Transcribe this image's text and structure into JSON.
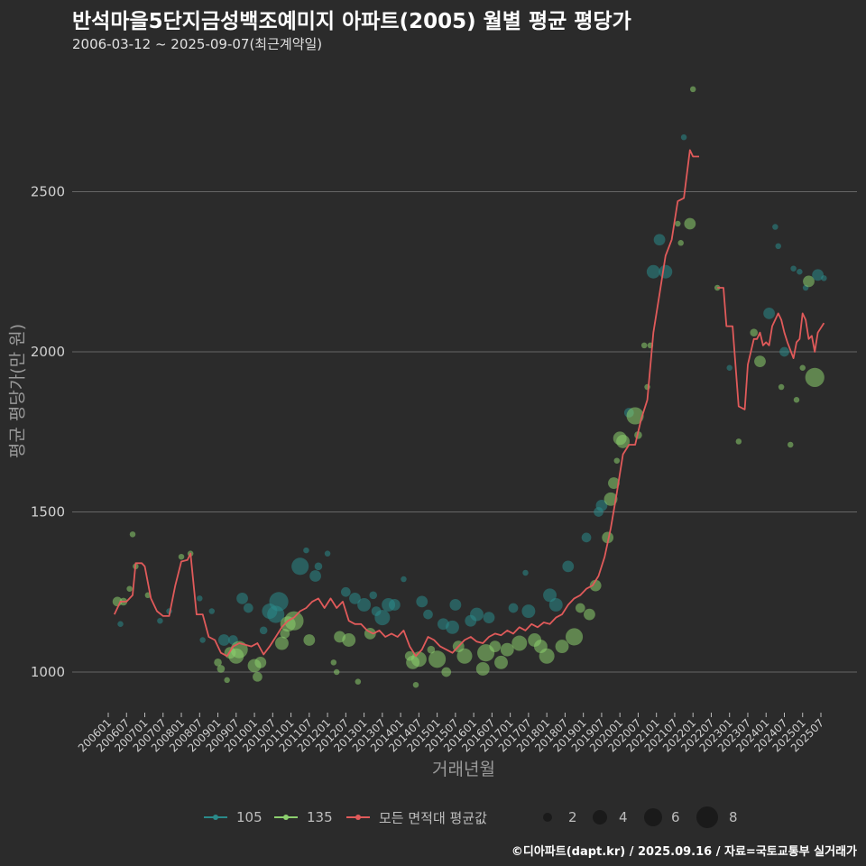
{
  "header": {
    "title": "반석마을5단지금성백조예미지 아파트(2005) 월별 평균 평당가",
    "subtitle": "2006-03-12 ~ 2025-09-07(최근계약일)"
  },
  "caption": "©디아파트(dapt.kr) / 2025.09.16 / 자료=국토교통부 실거래가",
  "colors": {
    "background": "#2b2b2b",
    "grid": "#666666",
    "series_105": "#2a8a8a",
    "series_135": "#8ccf6e",
    "series_avg": "#e05a5a"
  },
  "chart_data": {
    "type": "line",
    "xlabel": "거래년월",
    "ylabel": "평균 평당가(만 원)",
    "ylim": [
      880,
      2900
    ],
    "yticks": [
      1000,
      1500,
      2000,
      2500
    ],
    "grid": true,
    "legend_position": "bottom",
    "xtick_labels": [
      "200601",
      "200607",
      "200701",
      "200707",
      "200801",
      "200807",
      "200901",
      "200907",
      "201001",
      "201007",
      "201101",
      "201107",
      "201201",
      "201207",
      "201301",
      "201307",
      "201401",
      "201407",
      "201501",
      "201507",
      "201601",
      "201607",
      "201701",
      "201707",
      "201801",
      "201807",
      "201901",
      "201907",
      "202001",
      "202007",
      "202101",
      "202107",
      "202201",
      "202207",
      "202301",
      "202307",
      "202401",
      "202407",
      "202501",
      "202507"
    ],
    "legend": {
      "series": [
        {
          "key": "105",
          "label": "105",
          "color": "#2a8a8a"
        },
        {
          "key": "135",
          "label": "135",
          "color": "#8ccf6e"
        },
        {
          "key": "avg",
          "label": "모든 면적대 평균값",
          "color": "#e05a5a"
        }
      ],
      "sizes": [
        2,
        4,
        6,
        8
      ]
    },
    "average_line": [
      [
        "2006-03",
        1180
      ],
      [
        "2006-05",
        1220
      ],
      [
        "2006-07",
        1220
      ],
      [
        "2006-09",
        1240
      ],
      [
        "2006-10",
        1340
      ],
      [
        "2006-12",
        1340
      ],
      [
        "2007-01",
        1330
      ],
      [
        "2007-03",
        1230
      ],
      [
        "2007-05",
        1190
      ],
      [
        "2007-07",
        1175
      ],
      [
        "2007-09",
        1175
      ],
      [
        "2007-11",
        1270
      ],
      [
        "2008-01",
        1345
      ],
      [
        "2008-03",
        1350
      ],
      [
        "2008-04",
        1370
      ],
      [
        "2008-06",
        1180
      ],
      [
        "2008-08",
        1180
      ],
      [
        "2008-10",
        1110
      ],
      [
        "2008-12",
        1100
      ],
      [
        "2009-02",
        1060
      ],
      [
        "2009-04",
        1050
      ],
      [
        "2009-06",
        1080
      ],
      [
        "2009-08",
        1090
      ],
      [
        "2009-10",
        1085
      ],
      [
        "2009-12",
        1080
      ],
      [
        "2010-02",
        1090
      ],
      [
        "2010-04",
        1055
      ],
      [
        "2010-06",
        1080
      ],
      [
        "2010-08",
        1110
      ],
      [
        "2010-10",
        1140
      ],
      [
        "2010-12",
        1160
      ],
      [
        "2011-02",
        1170
      ],
      [
        "2011-04",
        1190
      ],
      [
        "2011-06",
        1200
      ],
      [
        "2011-08",
        1220
      ],
      [
        "2011-10",
        1230
      ],
      [
        "2011-12",
        1200
      ],
      [
        "2012-02",
        1230
      ],
      [
        "2012-04",
        1200
      ],
      [
        "2012-06",
        1220
      ],
      [
        "2012-08",
        1160
      ],
      [
        "2012-10",
        1150
      ],
      [
        "2012-12",
        1150
      ],
      [
        "2013-02",
        1130
      ],
      [
        "2013-04",
        1120
      ],
      [
        "2013-06",
        1130
      ],
      [
        "2013-08",
        1110
      ],
      [
        "2013-10",
        1120
      ],
      [
        "2013-12",
        1110
      ],
      [
        "2014-02",
        1130
      ],
      [
        "2014-04",
        1080
      ],
      [
        "2014-06",
        1050
      ],
      [
        "2014-08",
        1070
      ],
      [
        "2014-10",
        1110
      ],
      [
        "2014-12",
        1100
      ],
      [
        "2015-02",
        1080
      ],
      [
        "2015-04",
        1070
      ],
      [
        "2015-06",
        1060
      ],
      [
        "2015-08",
        1080
      ],
      [
        "2015-10",
        1100
      ],
      [
        "2015-12",
        1110
      ],
      [
        "2016-02",
        1095
      ],
      [
        "2016-04",
        1090
      ],
      [
        "2016-06",
        1110
      ],
      [
        "2016-08",
        1120
      ],
      [
        "2016-10",
        1115
      ],
      [
        "2016-12",
        1130
      ],
      [
        "2017-02",
        1120
      ],
      [
        "2017-04",
        1140
      ],
      [
        "2017-06",
        1130
      ],
      [
        "2017-08",
        1150
      ],
      [
        "2017-10",
        1140
      ],
      [
        "2017-12",
        1155
      ],
      [
        "2018-02",
        1150
      ],
      [
        "2018-04",
        1170
      ],
      [
        "2018-06",
        1180
      ],
      [
        "2018-08",
        1210
      ],
      [
        "2018-10",
        1230
      ],
      [
        "2018-12",
        1240
      ],
      [
        "2019-02",
        1260
      ],
      [
        "2019-04",
        1270
      ],
      [
        "2019-06",
        1300
      ],
      [
        "2019-08",
        1360
      ],
      [
        "2019-10",
        1450
      ],
      [
        "2019-12",
        1560
      ],
      [
        "2020-02",
        1680
      ],
      [
        "2020-04",
        1710
      ],
      [
        "2020-06",
        1710
      ],
      [
        "2020-08",
        1790
      ],
      [
        "2020-10",
        1850
      ],
      [
        "2020-12",
        2060
      ],
      [
        "2021-02",
        2180
      ],
      [
        "2021-04",
        2300
      ],
      [
        "2021-06",
        2350
      ],
      [
        "2021-08",
        2470
      ],
      [
        "2021-10",
        2480
      ],
      [
        "2021-12",
        2630
      ],
      [
        "2022-01",
        2610
      ],
      [
        "2022-03",
        2610
      ],
      null,
      [
        "2022-09",
        2200
      ],
      [
        "2022-11",
        2200
      ],
      [
        "2022-12",
        2080
      ],
      [
        "2023-02",
        2080
      ],
      [
        "2023-04",
        1830
      ],
      [
        "2023-06",
        1820
      ],
      [
        "2023-07",
        1960
      ],
      [
        "2023-09",
        2040
      ],
      [
        "2023-10",
        2040
      ],
      [
        "2023-11",
        2060
      ],
      [
        "2023-12",
        2020
      ],
      [
        "2024-01",
        2030
      ],
      [
        "2024-02",
        2020
      ],
      [
        "2024-03",
        2080
      ],
      [
        "2024-05",
        2120
      ],
      [
        "2024-06",
        2100
      ],
      [
        "2024-07",
        2060
      ],
      [
        "2024-08",
        2030
      ],
      [
        "2024-10",
        1980
      ],
      [
        "2024-11",
        2030
      ],
      [
        "2024-12",
        2040
      ],
      [
        "2025-01",
        2120
      ],
      [
        "2025-02",
        2100
      ],
      [
        "2025-03",
        2040
      ],
      [
        "2025-04",
        2050
      ],
      [
        "2025-05",
        2000
      ],
      [
        "2025-06",
        2060
      ],
      [
        "2025-08",
        2090
      ]
    ],
    "points": [
      [
        "2006-04",
        1220,
        "135",
        3
      ],
      [
        "2006-05",
        1150,
        "105",
        1
      ],
      [
        "2006-06",
        1220,
        "135",
        2
      ],
      [
        "2006-08",
        1260,
        "135",
        1
      ],
      [
        "2006-09",
        1430,
        "135",
        1
      ],
      [
        "2006-10",
        1330,
        "135",
        1
      ],
      [
        "2007-02",
        1240,
        "135",
        1
      ],
      [
        "2007-06",
        1160,
        "105",
        1
      ],
      [
        "2007-09",
        1190,
        "105",
        1
      ],
      [
        "2008-01",
        1360,
        "135",
        1
      ],
      [
        "2008-04",
        1370,
        "135",
        1
      ],
      [
        "2008-07",
        1230,
        "105",
        1
      ],
      [
        "2008-08",
        1100,
        "105",
        1
      ],
      [
        "2008-11",
        1190,
        "105",
        1
      ],
      [
        "2009-01",
        1030,
        "135",
        2
      ],
      [
        "2009-02",
        1010,
        "135",
        2
      ],
      [
        "2009-03",
        1100,
        "105",
        4
      ],
      [
        "2009-04",
        975,
        "135",
        1
      ],
      [
        "2009-05",
        1060,
        "135",
        4
      ],
      [
        "2009-06",
        1100,
        "105",
        3
      ],
      [
        "2009-07",
        1050,
        "135",
        6
      ],
      [
        "2009-08",
        1070,
        "135",
        7
      ],
      [
        "2009-09",
        1230,
        "105",
        4
      ],
      [
        "2009-11",
        1200,
        "105",
        3
      ],
      [
        "2010-01",
        1020,
        "135",
        5
      ],
      [
        "2010-02",
        985,
        "135",
        3
      ],
      [
        "2010-03",
        1030,
        "135",
        4
      ],
      [
        "2010-04",
        1130,
        "105",
        2
      ],
      [
        "2010-06",
        1190,
        "105",
        6
      ],
      [
        "2010-08",
        1180,
        "105",
        7
      ],
      [
        "2010-09",
        1220,
        "105",
        8
      ],
      [
        "2010-10",
        1090,
        "135",
        5
      ],
      [
        "2010-11",
        1120,
        "135",
        3
      ],
      [
        "2010-12",
        1150,
        "135",
        6
      ],
      [
        "2011-02",
        1160,
        "135",
        8
      ],
      [
        "2011-04",
        1330,
        "105",
        7
      ],
      [
        "2011-06",
        1380,
        "105",
        1
      ],
      [
        "2011-07",
        1100,
        "135",
        4
      ],
      [
        "2011-09",
        1300,
        "105",
        4
      ],
      [
        "2011-10",
        1330,
        "105",
        2
      ],
      [
        "2012-01",
        1370,
        "105",
        1
      ],
      [
        "2012-03",
        1030,
        "135",
        1
      ],
      [
        "2012-04",
        1000,
        "135",
        1
      ],
      [
        "2012-05",
        1110,
        "135",
        4
      ],
      [
        "2012-07",
        1250,
        "105",
        3
      ],
      [
        "2012-08",
        1100,
        "135",
        5
      ],
      [
        "2012-10",
        1230,
        "105",
        4
      ],
      [
        "2012-11",
        970,
        "135",
        1
      ],
      [
        "2013-01",
        1210,
        "105",
        5
      ],
      [
        "2013-03",
        1120,
        "135",
        4
      ],
      [
        "2013-04",
        1240,
        "105",
        2
      ],
      [
        "2013-05",
        1190,
        "105",
        3
      ],
      [
        "2013-07",
        1170,
        "105",
        6
      ],
      [
        "2013-09",
        1210,
        "105",
        5
      ],
      [
        "2013-11",
        1210,
        "105",
        4
      ],
      [
        "2014-02",
        1290,
        "105",
        1
      ],
      [
        "2014-04",
        1050,
        "135",
        3
      ],
      [
        "2014-05",
        1030,
        "135",
        5
      ],
      [
        "2014-06",
        960,
        "135",
        1
      ],
      [
        "2014-07",
        1040,
        "135",
        6
      ],
      [
        "2014-08",
        1220,
        "105",
        4
      ],
      [
        "2014-10",
        1180,
        "105",
        3
      ],
      [
        "2014-11",
        1070,
        "135",
        2
      ],
      [
        "2015-01",
        1040,
        "135",
        7
      ],
      [
        "2015-03",
        1150,
        "105",
        4
      ],
      [
        "2015-04",
        1000,
        "135",
        3
      ],
      [
        "2015-06",
        1140,
        "105",
        5
      ],
      [
        "2015-07",
        1210,
        "105",
        4
      ],
      [
        "2015-08",
        1080,
        "135",
        4
      ],
      [
        "2015-10",
        1050,
        "135",
        6
      ],
      [
        "2015-12",
        1160,
        "105",
        4
      ],
      [
        "2016-02",
        1180,
        "105",
        5
      ],
      [
        "2016-04",
        1010,
        "135",
        5
      ],
      [
        "2016-05",
        1060,
        "135",
        7
      ],
      [
        "2016-06",
        1170,
        "105",
        4
      ],
      [
        "2016-08",
        1080,
        "135",
        4
      ],
      [
        "2016-10",
        1030,
        "135",
        5
      ],
      [
        "2016-12",
        1070,
        "135",
        5
      ],
      [
        "2017-02",
        1200,
        "105",
        3
      ],
      [
        "2017-04",
        1090,
        "135",
        6
      ],
      [
        "2017-06",
        1310,
        "105",
        1
      ],
      [
        "2017-07",
        1190,
        "105",
        5
      ],
      [
        "2017-09",
        1100,
        "135",
        5
      ],
      [
        "2017-11",
        1080,
        "135",
        5
      ],
      [
        "2018-01",
        1050,
        "135",
        6
      ],
      [
        "2018-02",
        1240,
        "105",
        5
      ],
      [
        "2018-04",
        1210,
        "105",
        5
      ],
      [
        "2018-06",
        1080,
        "135",
        5
      ],
      [
        "2018-08",
        1330,
        "105",
        4
      ],
      [
        "2018-10",
        1110,
        "135",
        7
      ],
      [
        "2018-12",
        1200,
        "135",
        3
      ],
      [
        "2019-02",
        1420,
        "105",
        3
      ],
      [
        "2019-03",
        1180,
        "135",
        4
      ],
      [
        "2019-05",
        1270,
        "135",
        4
      ],
      [
        "2019-06",
        1500,
        "105",
        3
      ],
      [
        "2019-07",
        1520,
        "105",
        4
      ],
      [
        "2019-09",
        1420,
        "135",
        4
      ],
      [
        "2019-10",
        1540,
        "135",
        5
      ],
      [
        "2019-11",
        1590,
        "135",
        4
      ],
      [
        "2019-12",
        1660,
        "135",
        1
      ],
      [
        "2020-01",
        1730,
        "135",
        5
      ],
      [
        "2020-02",
        1720,
        "135",
        5
      ],
      [
        "2020-04",
        1810,
        "105",
        3
      ],
      [
        "2020-06",
        1800,
        "135",
        7
      ],
      [
        "2020-07",
        1740,
        "135",
        2
      ],
      [
        "2020-09",
        2020,
        "135",
        1
      ],
      [
        "2020-10",
        1890,
        "135",
        1
      ],
      [
        "2020-11",
        2020,
        "135",
        1
      ],
      [
        "2020-12",
        2250,
        "105",
        5
      ],
      [
        "2021-02",
        2350,
        "105",
        4
      ],
      [
        "2021-04",
        2250,
        "105",
        5
      ],
      [
        "2021-08",
        2400,
        "135",
        1
      ],
      [
        "2021-09",
        2340,
        "135",
        1
      ],
      [
        "2021-10",
        2670,
        "105",
        1
      ],
      [
        "2021-12",
        2400,
        "135",
        4
      ],
      [
        "2022-01",
        2820,
        "135",
        1
      ],
      [
        "2022-09",
        2200,
        "135",
        1
      ],
      [
        "2023-01",
        1950,
        "105",
        1
      ],
      [
        "2023-04",
        1720,
        "135",
        1
      ],
      [
        "2023-09",
        2060,
        "135",
        2
      ],
      [
        "2023-11",
        1970,
        "135",
        4
      ],
      [
        "2024-02",
        2120,
        "105",
        4
      ],
      [
        "2024-04",
        2390,
        "105",
        1
      ],
      [
        "2024-05",
        2330,
        "105",
        1
      ],
      [
        "2024-06",
        1890,
        "135",
        1
      ],
      [
        "2024-07",
        2000,
        "105",
        3
      ],
      [
        "2024-09",
        1710,
        "135",
        1
      ],
      [
        "2024-10",
        2260,
        "105",
        1
      ],
      [
        "2024-11",
        1850,
        "135",
        1
      ],
      [
        "2024-12",
        2250,
        "105",
        1
      ],
      [
        "2025-01",
        1950,
        "135",
        1
      ],
      [
        "2025-02",
        2200,
        "105",
        1
      ],
      [
        "2025-03",
        2220,
        "135",
        4
      ],
      [
        "2025-05",
        1920,
        "135",
        8
      ],
      [
        "2025-06",
        2240,
        "105",
        4
      ],
      [
        "2025-08",
        2230,
        "105",
        1
      ]
    ]
  }
}
